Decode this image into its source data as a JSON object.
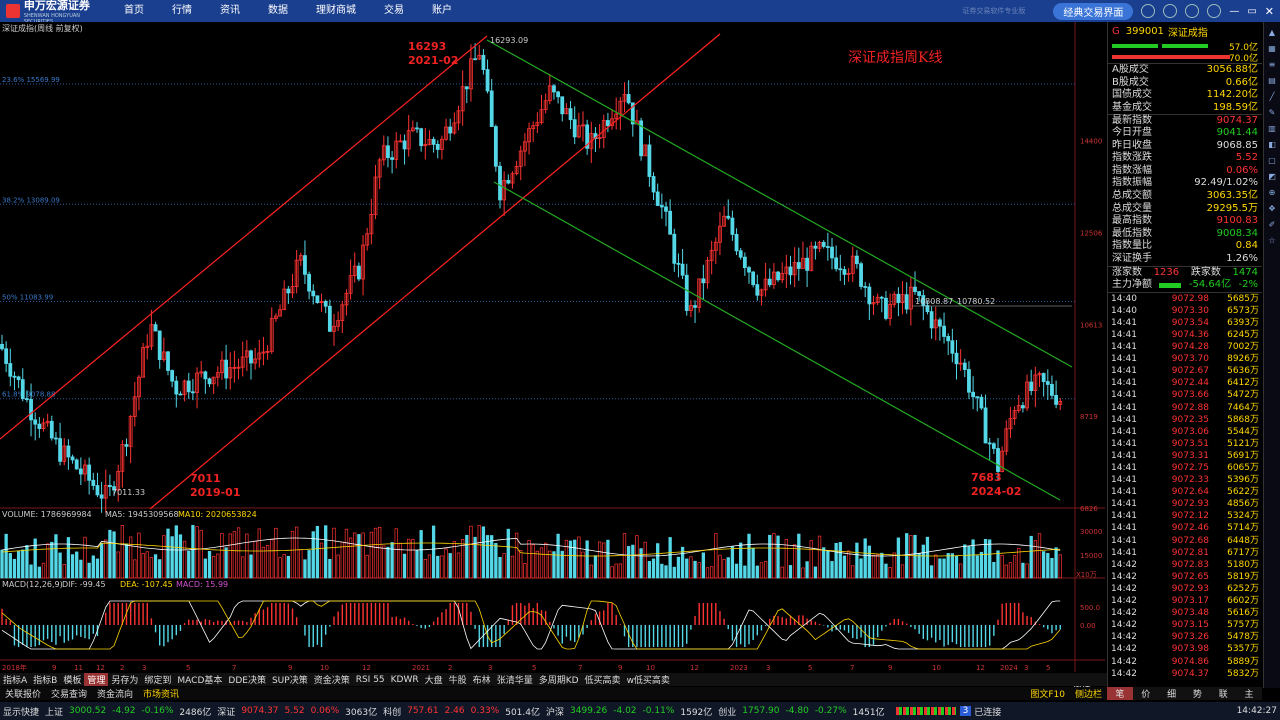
{
  "menu": {
    "logo": "申万宏源证券",
    "logo_sub": "SHENWAN HONGYUAN SECURITIES",
    "items": [
      "首页",
      "行情",
      "资讯",
      "数据",
      "理财商城",
      "交易",
      "账户"
    ],
    "faint_title": "证券交易软件专业版",
    "classic_button": "经典交易界面"
  },
  "chart": {
    "title": "深证成指(周线 前复权)",
    "watermark": "深证成指周K线",
    "fib_labels": [
      "23.6% 15569.99",
      "38.2% 13089.09",
      "50% 11083.99",
      "61.8% 9078.88"
    ],
    "price_ticks": [
      "14400",
      "12506",
      "10613",
      "8719",
      "6826"
    ],
    "annotations": {
      "high_value": "16293",
      "high_date": "2021-02",
      "high_mark": "16293.09",
      "low_value": "7011",
      "low_date": "2019-01",
      "low_mark": "7011.33",
      "recent_low_value": "7683",
      "recent_low_date": "2024-02",
      "line_mark_a": "10808.87",
      "line_mark_b": "10780.52"
    },
    "volume_label": "VOLUME: 1786969984",
    "volume_ma5": "MA5: 1945309568",
    "volume_ma10": "MA10: 2020653824",
    "volume_ticks": [
      "30000",
      "15000",
      "X10万"
    ],
    "macd_label": "MACD(12,26,9)",
    "macd_dif": "DIF: -99.45",
    "macd_dea": "DEA: -107.45",
    "macd_val": "MACD: 15.99",
    "macd_ticks": [
      "500.0",
      "0.00"
    ],
    "x_ticks": [
      "2018年",
      "9",
      "11",
      "12",
      "2",
      "3",
      "5",
      "7",
      "9",
      "10",
      "12",
      "2021",
      "2",
      "3",
      "5",
      "7",
      "9",
      "10",
      "12",
      "2023",
      "3",
      "5",
      "7",
      "9",
      "10",
      "12",
      "2024",
      "3",
      "5"
    ],
    "period_label": "周线"
  },
  "quote": {
    "g": "G",
    "code": "399001",
    "name": "深证成指",
    "bar_top": "57.0亿",
    "bar_bottom": "70.0亿",
    "stats": [
      {
        "label": "A股成交",
        "value": "3056.88亿",
        "color": "#ffd700"
      },
      {
        "label": "B股成交",
        "value": "0.66亿",
        "color": "#ffd700"
      },
      {
        "label": "国债成交",
        "value": "1142.20亿",
        "color": "#ffd700"
      },
      {
        "label": "基金成交",
        "value": "198.59亿",
        "color": "#ffd700"
      },
      {
        "label": "最新指数",
        "value": "9074.37",
        "color": "#f33",
        "sep": true
      },
      {
        "label": "今日开盘",
        "value": "9041.44",
        "color": "#2c2"
      },
      {
        "label": "昨日收盘",
        "value": "9068.85",
        "color": "#ddd"
      },
      {
        "label": "指数涨跌",
        "value": "5.52",
        "color": "#f33"
      },
      {
        "label": "指数涨幅",
        "value": "0.06%",
        "color": "#f33"
      },
      {
        "label": "指数振幅",
        "value": "92.49/1.02%",
        "color": "#ddd"
      },
      {
        "label": "总成交额",
        "value": "3063.35亿",
        "color": "#ffd700"
      },
      {
        "label": "总成交量",
        "value": "29295.5万",
        "color": "#ffd700"
      },
      {
        "label": "最高指数",
        "value": "9100.83",
        "color": "#f33"
      },
      {
        "label": "最低指数",
        "value": "9008.34",
        "color": "#2c2"
      },
      {
        "label": "指数量比",
        "value": "0.84",
        "color": "#ffd700"
      },
      {
        "label": "深证换手",
        "value": "1.26%",
        "color": "#ddd"
      }
    ],
    "up_label": "涨家数",
    "up_count": "1236",
    "down_label": "跌家数",
    "down_count": "1474",
    "flow_label": "主力净额",
    "flow_value": "-54.64亿",
    "flow_pct": "-2%",
    "ticks": [
      [
        "14:40",
        "9072.98",
        "5685万"
      ],
      [
        "14:40",
        "9073.30",
        "6573万"
      ],
      [
        "14:41",
        "9073.54",
        "6393万"
      ],
      [
        "14:41",
        "9074.36",
        "6245万"
      ],
      [
        "14:41",
        "9074.28",
        "7002万"
      ],
      [
        "14:41",
        "9073.70",
        "8926万"
      ],
      [
        "14:41",
        "9072.67",
        "5636万"
      ],
      [
        "14:41",
        "9072.44",
        "6412万"
      ],
      [
        "14:41",
        "9073.66",
        "5472万"
      ],
      [
        "14:41",
        "9072.88",
        "7464万"
      ],
      [
        "14:41",
        "9072.35",
        "5868万"
      ],
      [
        "14:41",
        "9073.06",
        "5544万"
      ],
      [
        "14:41",
        "9073.51",
        "5121万"
      ],
      [
        "14:41",
        "9073.31",
        "5691万"
      ],
      [
        "14:41",
        "9072.75",
        "6065万"
      ],
      [
        "14:41",
        "9072.33",
        "5396万"
      ],
      [
        "14:41",
        "9072.64",
        "5622万"
      ],
      [
        "14:41",
        "9072.93",
        "4856万"
      ],
      [
        "14:41",
        "9072.12",
        "5324万"
      ],
      [
        "14:41",
        "9072.46",
        "5714万"
      ],
      [
        "14:41",
        "9072.68",
        "6448万"
      ],
      [
        "14:41",
        "9072.81",
        "6717万"
      ],
      [
        "14:42",
        "9072.83",
        "5180万"
      ],
      [
        "14:42",
        "9072.65",
        "5819万"
      ],
      [
        "14:42",
        "9072.93",
        "6252万"
      ],
      [
        "14:42",
        "9073.17",
        "6602万"
      ],
      [
        "14:42",
        "9073.48",
        "5616万"
      ],
      [
        "14:42",
        "9073.15",
        "5757万"
      ],
      [
        "14:42",
        "9073.26",
        "5478万"
      ],
      [
        "14:42",
        "9073.98",
        "5357万"
      ],
      [
        "14:42",
        "9074.86",
        "5889万"
      ],
      [
        "14:42",
        "9074.37",
        "5832万"
      ]
    ]
  },
  "tabs1": [
    "指标A",
    "指标B",
    "模板",
    "管理",
    "另存为",
    "绑定到",
    "MACD基本",
    "DDE决策",
    "SUP决策",
    "资金决策",
    "RSI 55",
    "KDWR",
    "大盘",
    "牛股",
    "布林",
    "张清华量",
    "多周期KD",
    "低买高卖",
    "w低买高卖"
  ],
  "tabs1_active": 3,
  "tabs2": [
    "关联报价",
    "交易查询",
    "资金流向",
    "市场资讯"
  ],
  "tabs2_right": "图文F10",
  "tabs2_right2": "侧边栏",
  "rtabs": [
    "笔",
    "价",
    "细",
    "势",
    "联",
    "主"
  ],
  "status": {
    "quick": "显示快捷",
    "sh_label": "上证",
    "sh_val": "3000.52",
    "sh_chg": "-4.92",
    "sh_pct": "-0.16%",
    "sh_amt": "2486亿",
    "sz_label": "深证",
    "sz_val": "9074.37",
    "sz_chg": "5.52",
    "sz_pct": "0.06%",
    "sz_amt": "3063亿",
    "kc_label": "科创",
    "kc_val": "757.61",
    "kc_chg": "2.46",
    "kc_pct": "0.33%",
    "kc_amt": "501.4亿",
    "hs_label": "沪深",
    "hs_val": "3499.26",
    "hs_chg": "-4.02",
    "hs_pct": "-0.11%",
    "hs_amt": "1592亿",
    "cy_label": "创业",
    "cy_val": "1757.90",
    "cy_chg": "-4.80",
    "cy_pct": "-0.27%",
    "cy_amt": "1451亿",
    "conn_num": "3",
    "conn": "已连接",
    "time": "14:42:27"
  },
  "colors": {
    "up": "#ff3333",
    "down": "#54d8e8",
    "ma_white": "#ffffff",
    "ma_yellow": "#ffd700",
    "channel_red": "#ff2222",
    "channel_green": "#22aa22"
  }
}
